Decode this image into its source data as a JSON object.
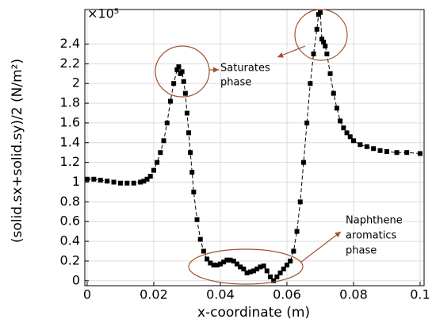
{
  "chart_data": {
    "type": "line",
    "xlabel": "x-coordinate (m)",
    "ylabel": "(solid.sx+solid.sy)/2 (N/m²)",
    "multiplier": "×10⁵",
    "xlim": [
      -0.0007,
      0.1012
    ],
    "ylim": [
      -0.05,
      2.75
    ],
    "xticks": [
      0,
      0.02,
      0.04,
      0.06,
      0.08,
      0.1
    ],
    "yticks": [
      0,
      0.2,
      0.4,
      0.6,
      0.8,
      1,
      1.2,
      1.4,
      1.6,
      1.8,
      2,
      2.2,
      2.4
    ],
    "grid": true,
    "series": [
      {
        "color": "#000000",
        "x": [
          0,
          0.002,
          0.004,
          0.006,
          0.008,
          0.01,
          0.012,
          0.014,
          0.016,
          0.017,
          0.018,
          0.019,
          0.02,
          0.021,
          0.022,
          0.023,
          0.024,
          0.025,
          0.026,
          0.027,
          0.0275,
          0.028,
          0.0285,
          0.029,
          0.0295,
          0.03,
          0.0305,
          0.031,
          0.0315,
          0.032,
          0.033,
          0.034,
          0.035,
          0.036,
          0.037,
          0.038,
          0.039,
          0.04,
          0.041,
          0.042,
          0.043,
          0.044,
          0.045,
          0.046,
          0.047,
          0.048,
          0.049,
          0.05,
          0.051,
          0.052,
          0.053,
          0.054,
          0.055,
          0.056,
          0.057,
          0.058,
          0.059,
          0.06,
          0.061,
          0.062,
          0.063,
          0.064,
          0.065,
          0.066,
          0.067,
          0.068,
          0.069,
          0.0695,
          0.07,
          0.0705,
          0.071,
          0.0715,
          0.072,
          0.073,
          0.074,
          0.075,
          0.076,
          0.077,
          0.078,
          0.079,
          0.08,
          0.082,
          0.084,
          0.086,
          0.088,
          0.09,
          0.093,
          0.096,
          0.1
        ],
        "values": [
          1.03,
          1.03,
          1.02,
          1.01,
          1.0,
          0.99,
          0.99,
          0.99,
          1.0,
          1.01,
          1.03,
          1.06,
          1.12,
          1.2,
          1.3,
          1.42,
          1.6,
          1.82,
          2.0,
          2.14,
          2.17,
          2.1,
          2.12,
          2.02,
          1.9,
          1.7,
          1.5,
          1.3,
          1.1,
          0.9,
          0.62,
          0.42,
          0.3,
          0.22,
          0.18,
          0.16,
          0.16,
          0.17,
          0.19,
          0.21,
          0.21,
          0.2,
          0.17,
          0.14,
          0.12,
          0.08,
          0.09,
          0.1,
          0.12,
          0.14,
          0.15,
          0.1,
          0.04,
          0.0,
          0.04,
          0.08,
          0.12,
          0.16,
          0.2,
          0.3,
          0.5,
          0.8,
          1.2,
          1.6,
          2.0,
          2.3,
          2.55,
          2.7,
          2.72,
          2.45,
          2.42,
          2.38,
          2.3,
          2.1,
          1.9,
          1.75,
          1.62,
          1.55,
          1.5,
          1.46,
          1.42,
          1.38,
          1.36,
          1.34,
          1.32,
          1.31,
          1.3,
          1.3,
          1.29
        ]
      }
    ],
    "annotations": [
      {
        "lines": [
          "Saturates",
          "phase"
        ]
      },
      {
        "lines": [
          "Naphthene",
          "aromatics",
          "phase"
        ]
      }
    ]
  }
}
